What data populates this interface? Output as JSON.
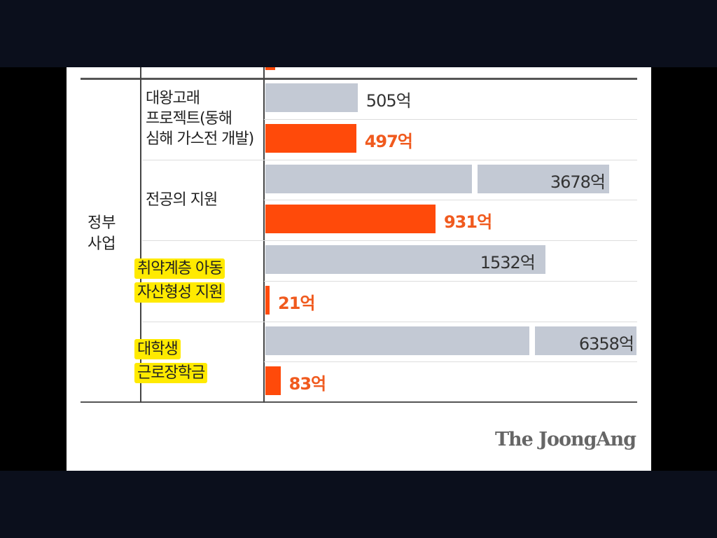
{
  "chart_data": {
    "type": "bar",
    "orientation": "horizontal",
    "group_label": "정부 사업",
    "group_label_lines": [
      "정부",
      "사업"
    ],
    "unit": "억",
    "categories": [
      {
        "lines": [
          "대왕고래",
          "프로젝트(동해",
          "심해 가스전 개발)"
        ],
        "highlighted": false
      },
      {
        "lines": [
          "전공의 지원"
        ],
        "highlighted": false
      },
      {
        "lines": [
          "취약계층 아동",
          "자산형성 지원"
        ],
        "highlighted": true
      },
      {
        "lines": [
          "대학생",
          "근로장학금"
        ],
        "highlighted": true
      }
    ],
    "series": [
      {
        "name": "gray",
        "color": "#c3c9d4",
        "values": [
          505,
          3678,
          1532,
          6358
        ],
        "labels": [
          "505억",
          "3678억",
          "1532억",
          "6358억"
        ]
      },
      {
        "name": "orange",
        "color": "#ff4a0a",
        "values": [
          497,
          931,
          21,
          83
        ],
        "labels": [
          "497억",
          "931억",
          "21억",
          "83억"
        ]
      }
    ],
    "broken_axis_values": [
      3678,
      6358
    ]
  },
  "source": "The JoongAng"
}
